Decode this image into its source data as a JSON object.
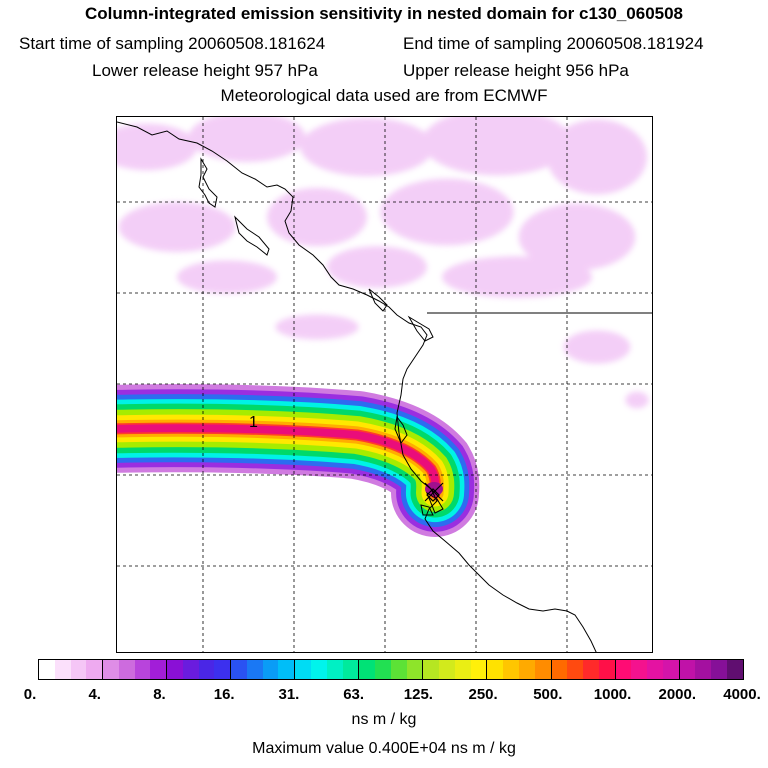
{
  "header": {
    "title": "Column-integrated emission sensitivity in nested domain for c130_060508",
    "start_time": "Start time of sampling 20060508.181624",
    "end_time": "End time of sampling 20060508.181924",
    "lower_release": "Lower release height  957 hPa",
    "upper_release": "Upper release height  956 hPa",
    "met_data": "Meteorological data used are from ECMWF"
  },
  "map": {
    "marker_label": "1",
    "plume_colors": [
      "#d07be0",
      "#9a2ee0",
      "#2d6cf0",
      "#00f2e6",
      "#00d96a",
      "#a6ec00",
      "#ffe800",
      "#ffad00",
      "#ff3a2c",
      "#ea0d7a"
    ],
    "background_sensitivity_color": "#f2c6f6"
  },
  "colorbar": {
    "tick_labels": [
      "0.",
      "4.",
      "8.",
      "16.",
      "31.",
      "63.",
      "125.",
      "250.",
      "500.",
      "1000.",
      "2000.",
      "4000."
    ],
    "colors": [
      "#ffffff",
      "#fbe0fb",
      "#f5c6f6",
      "#eeaaf0",
      "#df8de6",
      "#cd6bde",
      "#b844dc",
      "#a21ed8",
      "#8a10d6",
      "#6a1cde",
      "#4a26e6",
      "#3c30ee",
      "#2a52f2",
      "#1a78f4",
      "#0a9cf6",
      "#00bef8",
      "#00dcf4",
      "#00f4ec",
      "#00f0c4",
      "#00ea9c",
      "#00e276",
      "#22e052",
      "#5ce236",
      "#8ee42a",
      "#b6e622",
      "#d2ea1c",
      "#eaee14",
      "#fff00a",
      "#ffe200",
      "#ffc600",
      "#ffaa00",
      "#ff8c00",
      "#ff6a00",
      "#ff4a10",
      "#ff2a2a",
      "#ff1048",
      "#ff0c74",
      "#f4128e",
      "#e412a2",
      "#d414aa",
      "#c012a8",
      "#a410a0",
      "#861098",
      "#600e70"
    ],
    "unit": "ns m / kg",
    "max_value": "Maximum value  0.400E+04 ns m / kg"
  }
}
